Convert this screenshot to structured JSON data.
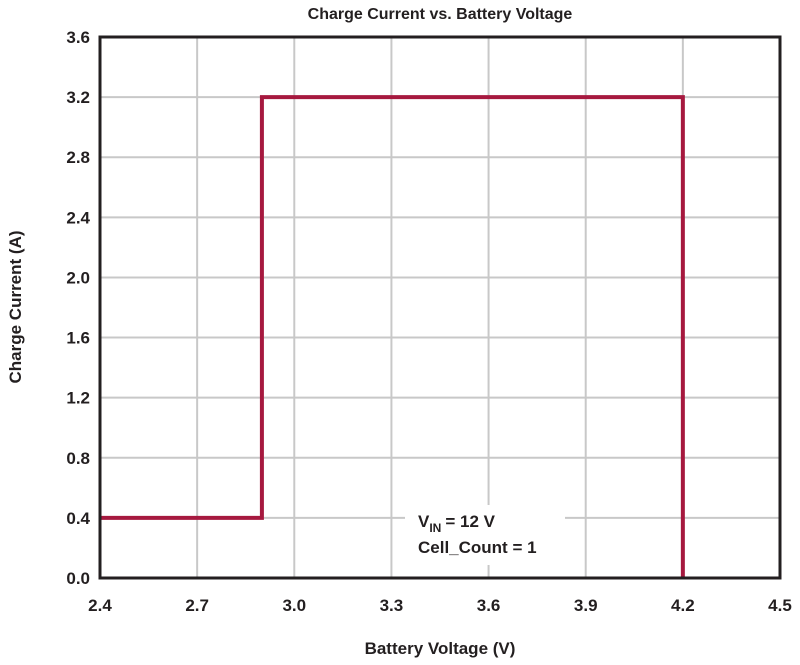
{
  "chart_data": {
    "type": "line",
    "title": "Charge Current vs. Battery Voltage",
    "xlabel": "Battery Voltage (V)",
    "ylabel": "Charge Current (A)",
    "xlim": [
      2.4,
      4.5
    ],
    "ylim": [
      0.0,
      3.6
    ],
    "xticks": [
      "2.4",
      "2.7",
      "3.0",
      "3.3",
      "3.6",
      "3.9",
      "4.2",
      "4.5"
    ],
    "yticks": [
      "0.0",
      "0.4",
      "0.8",
      "1.2",
      "1.6",
      "2.0",
      "2.4",
      "2.8",
      "3.2",
      "3.6"
    ],
    "grid": true,
    "series": [
      {
        "color": "#a6193f",
        "x": [
          2.4,
          2.9,
          2.9,
          4.2,
          4.2
        ],
        "y": [
          0.4,
          0.4,
          3.2,
          3.2,
          0.0
        ]
      }
    ],
    "annotation": {
      "vin_symbol": "V",
      "vin_subscript": "IN",
      "vin_value": "= 12 V",
      "cell_count": "Cell_Count = 1"
    }
  }
}
